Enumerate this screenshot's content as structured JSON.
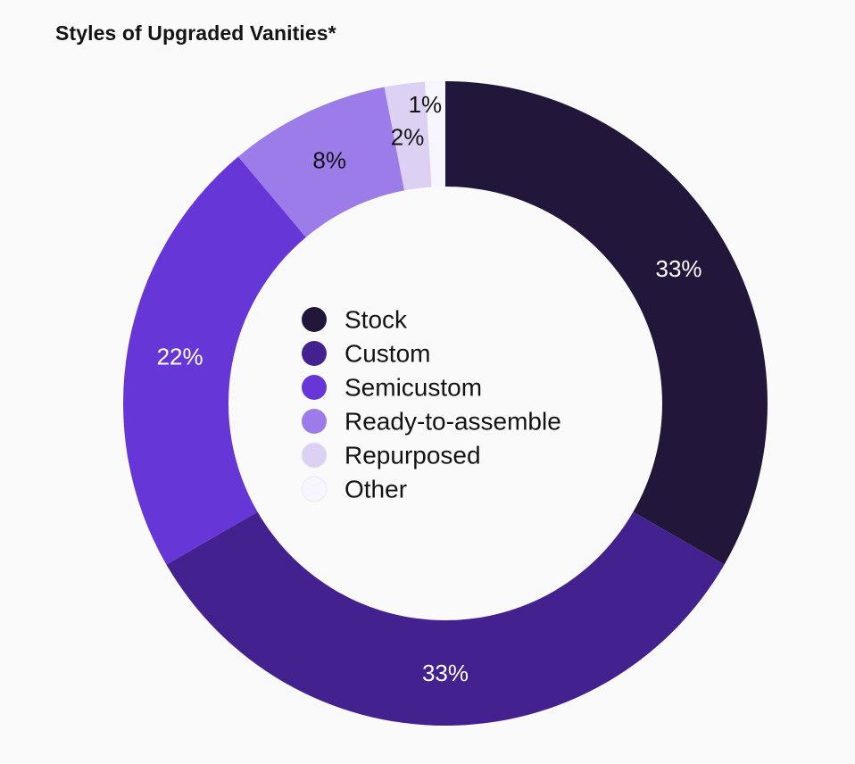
{
  "chart_data": {
    "type": "pie",
    "title": "Styles of Upgraded Vanities*",
    "categories": [
      "Stock",
      "Custom",
      "Semicustom",
      "Ready-to-assemble",
      "Repurposed",
      "Other"
    ],
    "values": [
      33,
      33,
      22,
      8,
      2,
      1
    ],
    "value_labels": [
      "33%",
      "33%",
      "22%",
      "8%",
      "2%",
      "1%"
    ],
    "colors": [
      "#22163b",
      "#43228f",
      "#6637d6",
      "#9b7ce9",
      "#dcd0f3",
      "#f7f5fd"
    ],
    "label_colors": [
      "#ffffff",
      "#ffffff",
      "#ffffff",
      "#141414",
      "#141414",
      "#141414"
    ],
    "donut": true,
    "legend_position": "center"
  }
}
